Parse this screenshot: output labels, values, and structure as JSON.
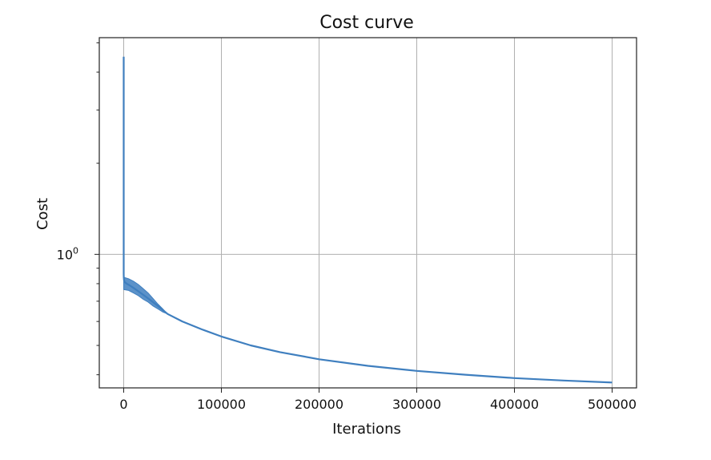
{
  "chart_data": {
    "type": "line",
    "title": "Cost curve",
    "xlabel": "Iterations",
    "ylabel": "Cost",
    "yscale": "log",
    "xlim": [
      -25000,
      525000
    ],
    "ylim": [
      0.362,
      5.2
    ],
    "grid": true,
    "color": "#3f7fbf",
    "x_ticks": [
      0,
      100000,
      200000,
      300000,
      400000,
      500000
    ],
    "x_tick_labels": [
      "0",
      "100000",
      "200000",
      "300000",
      "400000",
      "500000"
    ],
    "y_major_ticks": [
      1
    ],
    "y_major_tick_base": "10",
    "y_major_tick_exp": "0",
    "y_minor_ticks": [
      0.4,
      0.5,
      0.6,
      0.7,
      0.8,
      0.9,
      2,
      3,
      4,
      5
    ],
    "series": [
      {
        "x": [
          0,
          1,
          2,
          3,
          5,
          10,
          30,
          100,
          300,
          1000,
          3000,
          6000,
          10000,
          15000,
          20000,
          25000,
          30000,
          35000,
          40000,
          45000,
          60000,
          80000,
          100000,
          130000,
          160000,
          200000,
          250000,
          300000,
          350000,
          400000,
          450000,
          500000
        ],
        "y": [
          4.5,
          3.2,
          2.2,
          1.6,
          1.2,
          0.95,
          0.86,
          0.84,
          0.82,
          0.81,
          0.8,
          0.79,
          0.775,
          0.755,
          0.735,
          0.715,
          0.695,
          0.675,
          0.655,
          0.635,
          0.6,
          0.565,
          0.535,
          0.5,
          0.475,
          0.45,
          0.428,
          0.412,
          0.4,
          0.39,
          0.383,
          0.377
        ]
      }
    ],
    "band": {
      "x": [
        0,
        5000,
        10000,
        15000,
        20000,
        25000,
        30000,
        35000,
        40000,
        45000
      ],
      "upper": [
        0.84,
        0.83,
        0.815,
        0.795,
        0.77,
        0.745,
        0.715,
        0.685,
        0.66,
        0.635
      ],
      "lower": [
        0.765,
        0.76,
        0.745,
        0.73,
        0.71,
        0.695,
        0.675,
        0.66,
        0.645,
        0.635
      ]
    }
  }
}
